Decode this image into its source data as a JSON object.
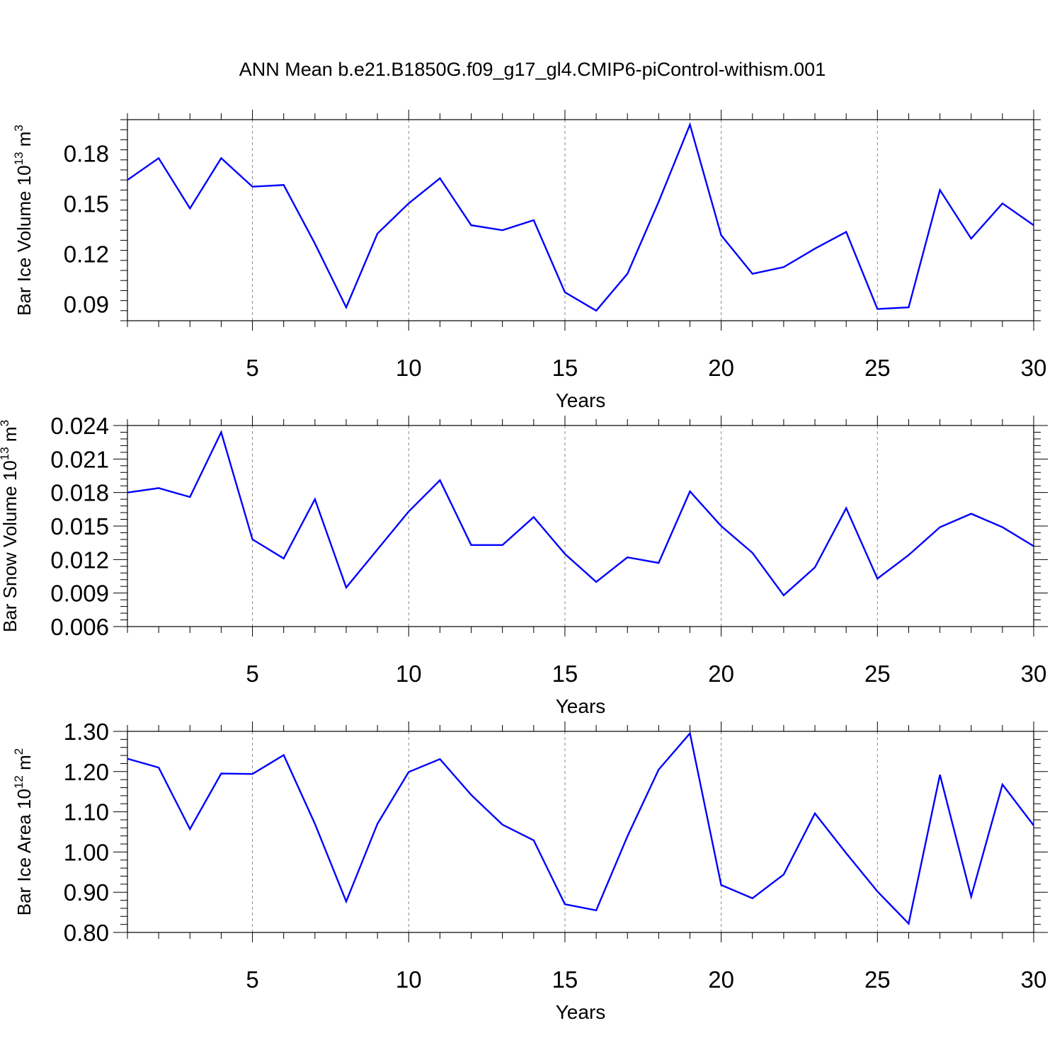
{
  "figure": {
    "title": "ANN Mean b.e21.B1850G.f09_g17_gl4.CMIP6-piControl-withism.001"
  },
  "chart_data": [
    {
      "type": "line",
      "ylabel": "Bar Ice Volume 10",
      "ylabel_exp": "13",
      "ylabel_unit": " m",
      "ylabel_unit_exp": "3",
      "xlabel": "Years",
      "xlim": [
        1,
        30
      ],
      "ylim": [
        0.08,
        0.2
      ],
      "xticks": [
        5,
        10,
        15,
        20,
        25,
        30
      ],
      "yticks": [
        0.09,
        0.12,
        0.15,
        0.18
      ],
      "ytick_labels": [
        "0.09",
        "0.12",
        "0.15",
        "0.18"
      ],
      "grid": "vertical-dashed",
      "line_color": "#0000ff",
      "x": [
        1,
        2,
        3,
        4,
        5,
        6,
        7,
        8,
        9,
        10,
        11,
        12,
        13,
        14,
        15,
        16,
        17,
        18,
        19,
        20,
        21,
        22,
        23,
        24,
        25,
        26,
        27,
        28,
        29,
        30
      ],
      "values": [
        0.164,
        0.177,
        0.147,
        0.177,
        0.16,
        0.161,
        0.126,
        0.088,
        0.132,
        0.15,
        0.165,
        0.137,
        0.134,
        0.14,
        0.097,
        0.086,
        0.108,
        0.151,
        0.197,
        0.131,
        0.108,
        0.112,
        0.123,
        0.133,
        0.087,
        0.088,
        0.158,
        0.129,
        0.15,
        0.137
      ]
    },
    {
      "type": "line",
      "ylabel": "Bar Snow Volume 10",
      "ylabel_exp": "13",
      "ylabel_unit": " m",
      "ylabel_unit_exp": "3",
      "xlabel": "Years",
      "xlim": [
        1,
        30
      ],
      "ylim": [
        0.006,
        0.024
      ],
      "xticks": [
        5,
        10,
        15,
        20,
        25,
        30
      ],
      "yticks": [
        0.006,
        0.009,
        0.012,
        0.015,
        0.018,
        0.021,
        0.024
      ],
      "ytick_labels": [
        "0.006",
        "0.009",
        "0.012",
        "0.015",
        "0.018",
        "0.021",
        "0.024"
      ],
      "grid": "vertical-dashed",
      "line_color": "#0000ff",
      "x": [
        1,
        2,
        3,
        4,
        5,
        6,
        7,
        8,
        9,
        10,
        11,
        12,
        13,
        14,
        15,
        16,
        17,
        18,
        19,
        20,
        21,
        22,
        23,
        24,
        25,
        26,
        27,
        28,
        29,
        30
      ],
      "values": [
        0.018,
        0.0184,
        0.0176,
        0.0234,
        0.0138,
        0.0121,
        0.0174,
        0.0095,
        0.0129,
        0.0163,
        0.0191,
        0.0133,
        0.0133,
        0.0158,
        0.0125,
        0.01,
        0.0122,
        0.0117,
        0.0181,
        0.015,
        0.0126,
        0.0088,
        0.0113,
        0.0166,
        0.0103,
        0.0124,
        0.0149,
        0.0161,
        0.0149,
        0.0132
      ]
    },
    {
      "type": "line",
      "ylabel": "Bar Ice Area 10",
      "ylabel_exp": "12",
      "ylabel_unit": " m",
      "ylabel_unit_exp": "2",
      "xlabel": "Years",
      "xlim": [
        1,
        30
      ],
      "ylim": [
        0.8,
        1.3
      ],
      "xticks": [
        5,
        10,
        15,
        20,
        25,
        30
      ],
      "yticks": [
        0.8,
        0.9,
        1.0,
        1.1,
        1.2,
        1.3
      ],
      "ytick_labels": [
        "0.80",
        "0.90",
        "1.00",
        "1.10",
        "1.20",
        "1.30"
      ],
      "grid": "vertical-dashed",
      "line_color": "#0000ff",
      "x": [
        1,
        2,
        3,
        4,
        5,
        6,
        7,
        8,
        9,
        10,
        11,
        12,
        13,
        14,
        15,
        16,
        17,
        18,
        19,
        20,
        21,
        22,
        23,
        24,
        25,
        26,
        27,
        28,
        29,
        30
      ],
      "values": [
        1.232,
        1.21,
        1.057,
        1.195,
        1.194,
        1.241,
        1.07,
        0.877,
        1.07,
        1.199,
        1.231,
        1.142,
        1.068,
        1.029,
        0.87,
        0.855,
        1.039,
        1.205,
        1.295,
        0.918,
        0.885,
        0.944,
        1.096,
        0.997,
        0.902,
        0.822,
        1.192,
        0.889,
        1.168,
        1.066
      ]
    }
  ]
}
